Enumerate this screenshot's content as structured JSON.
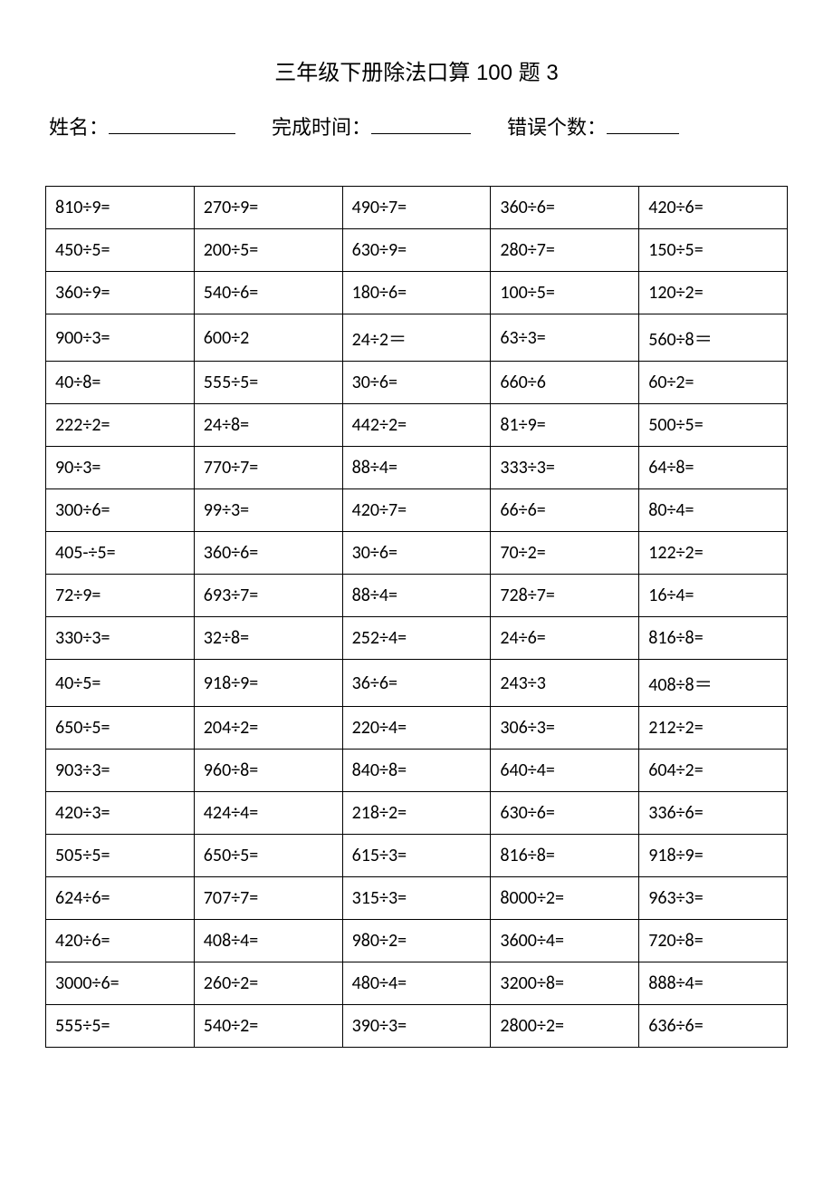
{
  "title": "三年级下册除法口算 100 题 3",
  "header": {
    "name_label": "姓名：",
    "time_label": "完成时间：",
    "error_label": "错误个数："
  },
  "table": {
    "columns": 5,
    "rows": [
      [
        "810÷9=",
        "270÷9=",
        "490÷7=",
        "360÷6=",
        "420÷6="
      ],
      [
        "450÷5=",
        "200÷5=",
        "630÷9=",
        "280÷7=",
        "150÷5="
      ],
      [
        "360÷9=",
        "540÷6=",
        "180÷6=",
        "100÷5=",
        "120÷2="
      ],
      [
        "900÷3=",
        "600÷2",
        "24÷2＝",
        "63÷3=",
        "560÷8＝"
      ],
      [
        "40÷8=",
        "555÷5=",
        "30÷6=",
        "660÷6",
        "60÷2="
      ],
      [
        "222÷2=",
        "24÷8=",
        "442÷2=",
        "81÷9=",
        "500÷5="
      ],
      [
        "90÷3=",
        "770÷7=",
        "88÷4=",
        "333÷3=",
        "64÷8="
      ],
      [
        "300÷6=",
        "99÷3=",
        "420÷7=",
        "66÷6=",
        "80÷4="
      ],
      [
        "405-÷5=",
        "360÷6=",
        "30÷6=",
        "70÷2=",
        "122÷2="
      ],
      [
        "72÷9=",
        "693÷7=",
        "88÷4=",
        "728÷7=",
        "16÷4="
      ],
      [
        "330÷3=",
        "32÷8=",
        "252÷4=",
        "24÷6=",
        "816÷8="
      ],
      [
        "40÷5=",
        "918÷9=",
        "36÷6=",
        "243÷3",
        "408÷8＝"
      ],
      [
        "650÷5=",
        "204÷2=",
        "220÷4=",
        "306÷3=",
        "212÷2="
      ],
      [
        "903÷3=",
        "960÷8=",
        "840÷8=",
        "640÷4=",
        "604÷2="
      ],
      [
        "420÷3=",
        "424÷4=",
        "218÷2=",
        "630÷6=",
        "336÷6="
      ],
      [
        "505÷5=",
        "650÷5=",
        "615÷3=",
        "816÷8=",
        "918÷9="
      ],
      [
        "624÷6=",
        "707÷7=",
        "315÷3=",
        "8000÷2=",
        "963÷3="
      ],
      [
        "420÷6=",
        "408÷4=",
        "980÷2=",
        "3600÷4=",
        "720÷8="
      ],
      [
        "3000÷6=",
        "260÷2=",
        "480÷4=",
        "3200÷8=",
        "888÷4="
      ],
      [
        "555÷5=",
        "540÷2=",
        "390÷3=",
        "2800÷2=",
        "636÷6="
      ]
    ]
  }
}
